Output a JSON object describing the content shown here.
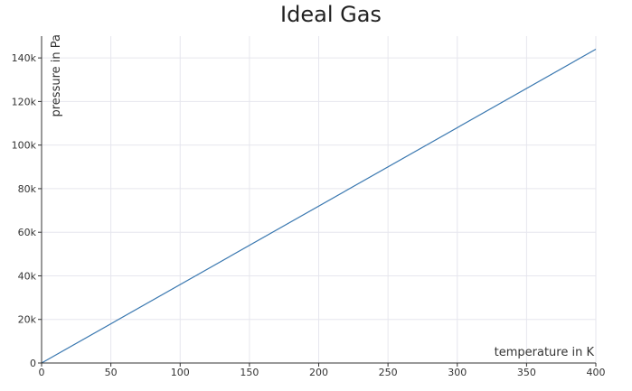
{
  "chart_data": {
    "type": "line",
    "title": "Ideal Gas",
    "xlabel": "temperature in K",
    "ylabel": "pressure in Pa",
    "xlim": [
      0,
      400
    ],
    "ylim": [
      0,
      150000
    ],
    "x_ticks": [
      0,
      50,
      100,
      150,
      200,
      250,
      300,
      350,
      400
    ],
    "x_tick_labels": [
      "0",
      "50",
      "100",
      "150",
      "200",
      "250",
      "300",
      "350",
      "400"
    ],
    "y_ticks": [
      0,
      20000,
      40000,
      60000,
      80000,
      100000,
      120000,
      140000
    ],
    "y_tick_labels": [
      "0",
      "20k",
      "40k",
      "60k",
      "80k",
      "100k",
      "120k",
      "140k"
    ],
    "grid": true,
    "legend": false,
    "series": [
      {
        "color": "#3a78b0",
        "x": [
          0,
          400
        ],
        "y": [
          0,
          144000
        ]
      }
    ]
  }
}
